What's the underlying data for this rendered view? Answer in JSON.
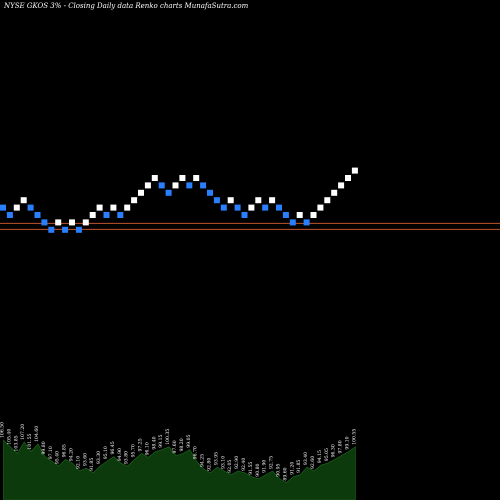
{
  "chart_data": {
    "type": "renko",
    "title": "NYSE GKOS 3% -  Closing Daily data  Renko  charts MunafaSutra.com",
    "colors": {
      "background": "#000000",
      "up_brick": "#ffffff",
      "down_brick": "#2a7fff",
      "reference_line": "#c0562a",
      "volume": "#0d3a0d"
    },
    "bricks": [
      {
        "dir": "down",
        "level": 11
      },
      {
        "dir": "down",
        "level": 10
      },
      {
        "dir": "up",
        "level": 11
      },
      {
        "dir": "up",
        "level": 12
      },
      {
        "dir": "down",
        "level": 11
      },
      {
        "dir": "down",
        "level": 10
      },
      {
        "dir": "down",
        "level": 9
      },
      {
        "dir": "down",
        "level": 8
      },
      {
        "dir": "up",
        "level": 9
      },
      {
        "dir": "down",
        "level": 8
      },
      {
        "dir": "up",
        "level": 9
      },
      {
        "dir": "down",
        "level": 8
      },
      {
        "dir": "up",
        "level": 9
      },
      {
        "dir": "up",
        "level": 10
      },
      {
        "dir": "up",
        "level": 11
      },
      {
        "dir": "down",
        "level": 10
      },
      {
        "dir": "up",
        "level": 11
      },
      {
        "dir": "down",
        "level": 10
      },
      {
        "dir": "up",
        "level": 11
      },
      {
        "dir": "up",
        "level": 12
      },
      {
        "dir": "up",
        "level": 13
      },
      {
        "dir": "up",
        "level": 14
      },
      {
        "dir": "up",
        "level": 15
      },
      {
        "dir": "down",
        "level": 14
      },
      {
        "dir": "down",
        "level": 13
      },
      {
        "dir": "up",
        "level": 14
      },
      {
        "dir": "up",
        "level": 15
      },
      {
        "dir": "down",
        "level": 14
      },
      {
        "dir": "up",
        "level": 15
      },
      {
        "dir": "down",
        "level": 14
      },
      {
        "dir": "down",
        "level": 13
      },
      {
        "dir": "down",
        "level": 12
      },
      {
        "dir": "down",
        "level": 11
      },
      {
        "dir": "up",
        "level": 12
      },
      {
        "dir": "down",
        "level": 11
      },
      {
        "dir": "down",
        "level": 10
      },
      {
        "dir": "up",
        "level": 11
      },
      {
        "dir": "up",
        "level": 12
      },
      {
        "dir": "down",
        "level": 11
      },
      {
        "dir": "up",
        "level": 12
      },
      {
        "dir": "down",
        "level": 11
      },
      {
        "dir": "down",
        "level": 10
      },
      {
        "dir": "down",
        "level": 9
      },
      {
        "dir": "up",
        "level": 10
      },
      {
        "dir": "down",
        "level": 9
      },
      {
        "dir": "up",
        "level": 10
      },
      {
        "dir": "up",
        "level": 11
      },
      {
        "dir": "up",
        "level": 12
      },
      {
        "dir": "up",
        "level": 13
      },
      {
        "dir": "up",
        "level": 14
      },
      {
        "dir": "up",
        "level": 15
      },
      {
        "dir": "up",
        "level": 16
      }
    ],
    "reference_levels": [
      9.2,
      8.4
    ],
    "volume": {
      "values": [
        62,
        55,
        48,
        60,
        50,
        58,
        45,
        40,
        35,
        42,
        38,
        30,
        33,
        28,
        35,
        40,
        45,
        38,
        35,
        42,
        48,
        44,
        50,
        52,
        55,
        46,
        48,
        52,
        40,
        32,
        28,
        34,
        30,
        26,
        30,
        28,
        24,
        22,
        26,
        30,
        22,
        18,
        24,
        26,
        34,
        30,
        36,
        38,
        42,
        46,
        50,
        55
      ],
      "labels": [
        "106.50",
        "105.40",
        "103.85",
        "107.20",
        "101.55",
        "104.60",
        "99.80",
        "97.10",
        "95.40",
        "96.85",
        "94.20",
        "92.10",
        "93.60",
        "91.85",
        "93.30",
        "95.10",
        "96.45",
        "94.90",
        "93.80",
        "95.70",
        "97.25",
        "96.10",
        "98.40",
        "99.15",
        "100.35",
        "97.60",
        "98.20",
        "99.05",
        "96.70",
        "94.25",
        "92.80",
        "93.95",
        "93.10",
        "92.05",
        "92.90",
        "92.40",
        "91.55",
        "90.80",
        "91.90",
        "92.75",
        "90.95",
        "89.60",
        "91.20",
        "91.85",
        "93.40",
        "92.60",
        "94.15",
        "95.05",
        "96.30",
        "97.80",
        "99.10",
        "100.55"
      ]
    }
  }
}
